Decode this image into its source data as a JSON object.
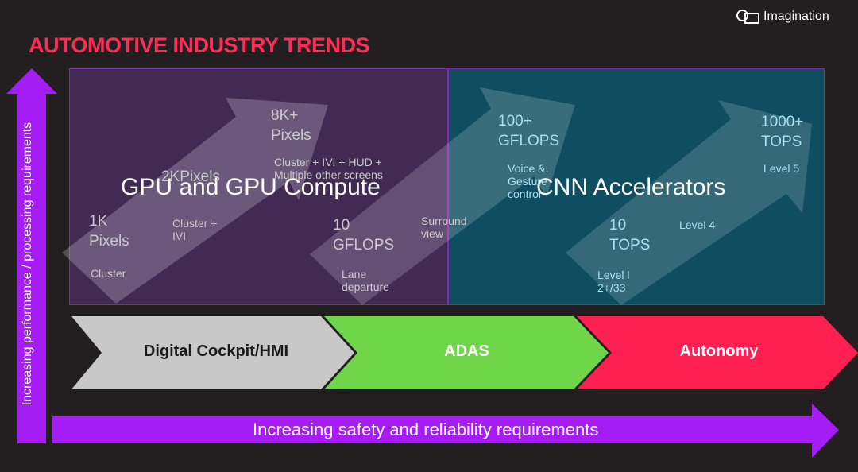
{
  "logo": {
    "text": "Imagination"
  },
  "slide": {
    "title": "AUTOMOTIVE INDUSTRY TRENDS"
  },
  "panels": {
    "gpu": {
      "title": "GPU and GPU Compute"
    },
    "cnn": {
      "title": "CNN Accelerators"
    }
  },
  "labels": {
    "px_1k": "1K\nPixels",
    "px_1k_desc": "Cluster",
    "px_2k": "2KPixels",
    "px_2k_desc": "Cluster +\nIVI",
    "px_8k": "8K+\nPixels",
    "px_8k_desc": "Cluster + IVI + HUD +\nMultiple other screens",
    "gflops_10": "10\nGFLOPS",
    "gflops_10_desc": "Lane\ndeparture",
    "surround": "Surround\nview",
    "gflops_100": "100+\nGFLOPS",
    "voice": "Voice &.\nGesture\ncontrol",
    "tops_10": "10\nTOPS",
    "level_l2": "Level l\n2+/33",
    "level_4": "Level 4",
    "tops_1000": "1000+\nTOPS",
    "level_5": "Level 5"
  },
  "stages": [
    {
      "label": "Digital Cockpit/HMI",
      "color": "#c8c8c8",
      "text_color": "#1a1a1a"
    },
    {
      "label": "ADAS",
      "color": "#6fd64a",
      "text_color": "#ffffff"
    },
    {
      "label": "Autonomy",
      "color": "#ff1f50",
      "text_color": "#ffffff"
    }
  ],
  "axes": {
    "vertical": "Increasing performance / processing requirements",
    "horizontal": "Increasing safety and reliability requirements"
  },
  "colors": {
    "accent_purple": "#a61cf5",
    "title_red": "#ff2d55",
    "background": "#231f20"
  }
}
